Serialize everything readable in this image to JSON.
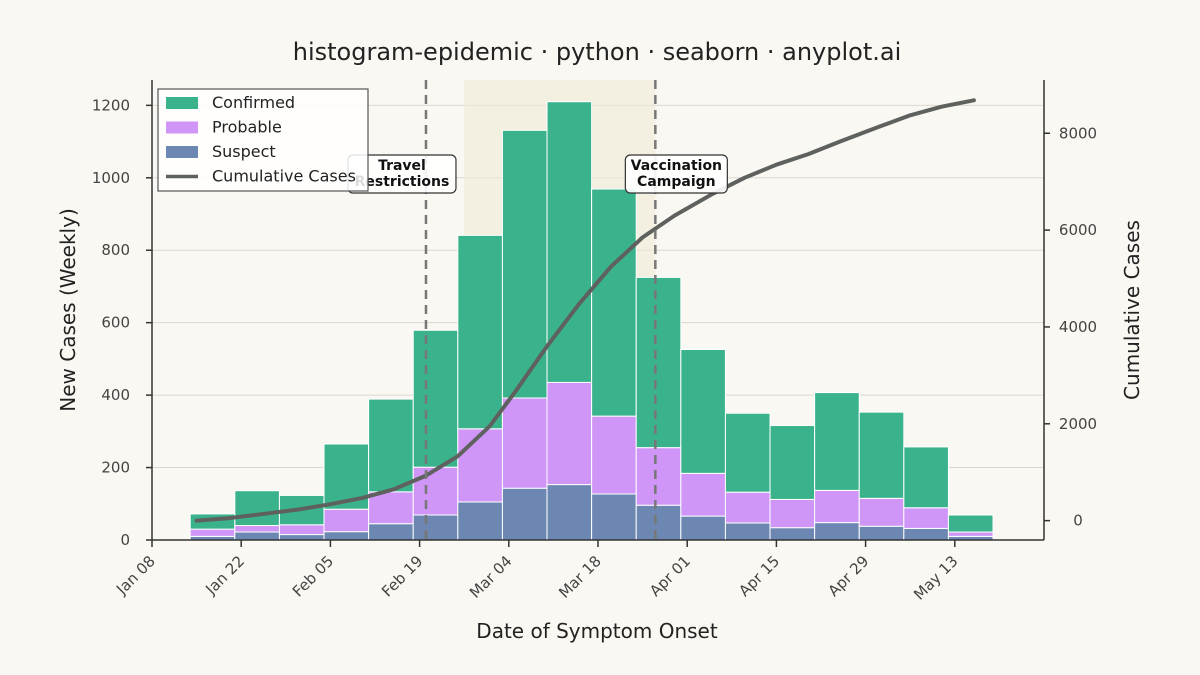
{
  "chart_data": {
    "type": "bar",
    "stacked": true,
    "title": "histogram-epidemic · python · seaborn · anyplot.ai",
    "xlabel": "Date of Symptom Onset",
    "ylabel": "New Cases (Weekly)",
    "y2label": "Cumulative Cases",
    "ylim": [
      0,
      1270
    ],
    "y2lim": [
      -400,
      9100
    ],
    "yticks": [
      0,
      200,
      400,
      600,
      800,
      1000,
      1200
    ],
    "y2ticks": [
      0,
      2000,
      4000,
      6000,
      8000
    ],
    "xlim": [
      "2024-01-08",
      "2024-05-27"
    ],
    "xticks": [
      {
        "date": "2024-01-08",
        "label": "Jan 08"
      },
      {
        "date": "2024-01-22",
        "label": "Jan 22"
      },
      {
        "date": "2024-02-05",
        "label": "Feb 05"
      },
      {
        "date": "2024-02-19",
        "label": "Feb 19"
      },
      {
        "date": "2024-03-04",
        "label": "Mar 04"
      },
      {
        "date": "2024-03-18",
        "label": "Mar 18"
      },
      {
        "date": "2024-04-01",
        "label": "Apr 01"
      },
      {
        "date": "2024-04-15",
        "label": "Apr 15"
      },
      {
        "date": "2024-04-29",
        "label": "Apr 29"
      },
      {
        "date": "2024-05-13",
        "label": "May 13"
      }
    ],
    "bins": [
      {
        "start": "2024-01-14",
        "end": "2024-01-21",
        "suspect": 10,
        "probable": 20,
        "confirmed": 42
      },
      {
        "start": "2024-01-21",
        "end": "2024-01-28",
        "suspect": 22,
        "probable": 18,
        "confirmed": 96
      },
      {
        "start": "2024-01-28",
        "end": "2024-02-04",
        "suspect": 15,
        "probable": 27,
        "confirmed": 81
      },
      {
        "start": "2024-02-04",
        "end": "2024-02-11",
        "suspect": 23,
        "probable": 62,
        "confirmed": 180
      },
      {
        "start": "2024-02-11",
        "end": "2024-02-18",
        "suspect": 45,
        "probable": 88,
        "confirmed": 256
      },
      {
        "start": "2024-02-18",
        "end": "2024-02-25",
        "suspect": 69,
        "probable": 132,
        "confirmed": 378
      },
      {
        "start": "2024-02-25",
        "end": "2024-03-03",
        "suspect": 105,
        "probable": 202,
        "confirmed": 534
      },
      {
        "start": "2024-03-03",
        "end": "2024-03-10",
        "suspect": 143,
        "probable": 249,
        "confirmed": 739
      },
      {
        "start": "2024-03-10",
        "end": "2024-03-17",
        "suspect": 153,
        "probable": 282,
        "confirmed": 775
      },
      {
        "start": "2024-03-17",
        "end": "2024-03-24",
        "suspect": 127,
        "probable": 215,
        "confirmed": 627
      },
      {
        "start": "2024-03-24",
        "end": "2024-03-31",
        "suspect": 96,
        "probable": 159,
        "confirmed": 470
      },
      {
        "start": "2024-03-31",
        "end": "2024-04-07",
        "suspect": 66,
        "probable": 118,
        "confirmed": 342
      },
      {
        "start": "2024-04-07",
        "end": "2024-04-14",
        "suspect": 47,
        "probable": 85,
        "confirmed": 218
      },
      {
        "start": "2024-04-14",
        "end": "2024-04-21",
        "suspect": 34,
        "probable": 78,
        "confirmed": 204
      },
      {
        "start": "2024-04-21",
        "end": "2024-04-28",
        "suspect": 48,
        "probable": 89,
        "confirmed": 270
      },
      {
        "start": "2024-04-28",
        "end": "2024-05-05",
        "suspect": 38,
        "probable": 77,
        "confirmed": 238
      },
      {
        "start": "2024-05-05",
        "end": "2024-05-12",
        "suspect": 32,
        "probable": 57,
        "confirmed": 168
      },
      {
        "start": "2024-05-12",
        "end": "2024-05-19",
        "suspect": 10,
        "probable": 12,
        "confirmed": 47
      }
    ],
    "cumulative": {
      "name": "Cumulative Cases",
      "points": [
        [
          "2024-01-15",
          0
        ],
        [
          "2024-01-20",
          50
        ],
        [
          "2024-01-25",
          130
        ],
        [
          "2024-01-31",
          230
        ],
        [
          "2024-02-05",
          340
        ],
        [
          "2024-02-10",
          470
        ],
        [
          "2024-02-15",
          650
        ],
        [
          "2024-02-20",
          930
        ],
        [
          "2024-02-25",
          1330
        ],
        [
          "2024-03-01",
          1950
        ],
        [
          "2024-03-05",
          2660
        ],
        [
          "2024-03-10",
          3600
        ],
        [
          "2024-03-15",
          4470
        ],
        [
          "2024-03-20",
          5240
        ],
        [
          "2024-03-25",
          5850
        ],
        [
          "2024-03-30",
          6300
        ],
        [
          "2024-04-05",
          6750
        ],
        [
          "2024-04-10",
          7080
        ],
        [
          "2024-04-15",
          7350
        ],
        [
          "2024-04-20",
          7570
        ],
        [
          "2024-04-25",
          7830
        ],
        [
          "2024-05-01",
          8130
        ],
        [
          "2024-05-06",
          8370
        ],
        [
          "2024-05-11",
          8550
        ],
        [
          "2024-05-16",
          8680
        ]
      ]
    },
    "series": [
      {
        "key": "confirmed",
        "name": "Confirmed",
        "color": "#3AB38D"
      },
      {
        "key": "probable",
        "name": "Probable",
        "color": "#CF95F7"
      },
      {
        "key": "suspect",
        "name": "Suspect",
        "color": "#6C87B1"
      }
    ],
    "cumulative_color": "#5E615E",
    "legend": {
      "position": "top-left",
      "entries": [
        "Confirmed",
        "Probable",
        "Suspect",
        "Cumulative Cases"
      ]
    },
    "annotations": [
      {
        "label_lines": [
          "Travel",
          "Restrictions"
        ],
        "date": "2024-02-20"
      },
      {
        "label_lines": [
          "Vaccination",
          "Campaign"
        ],
        "date": "2024-03-27"
      }
    ],
    "shaded_span": {
      "start": "2024-02-26",
      "end": "2024-03-27"
    },
    "grid": true
  }
}
